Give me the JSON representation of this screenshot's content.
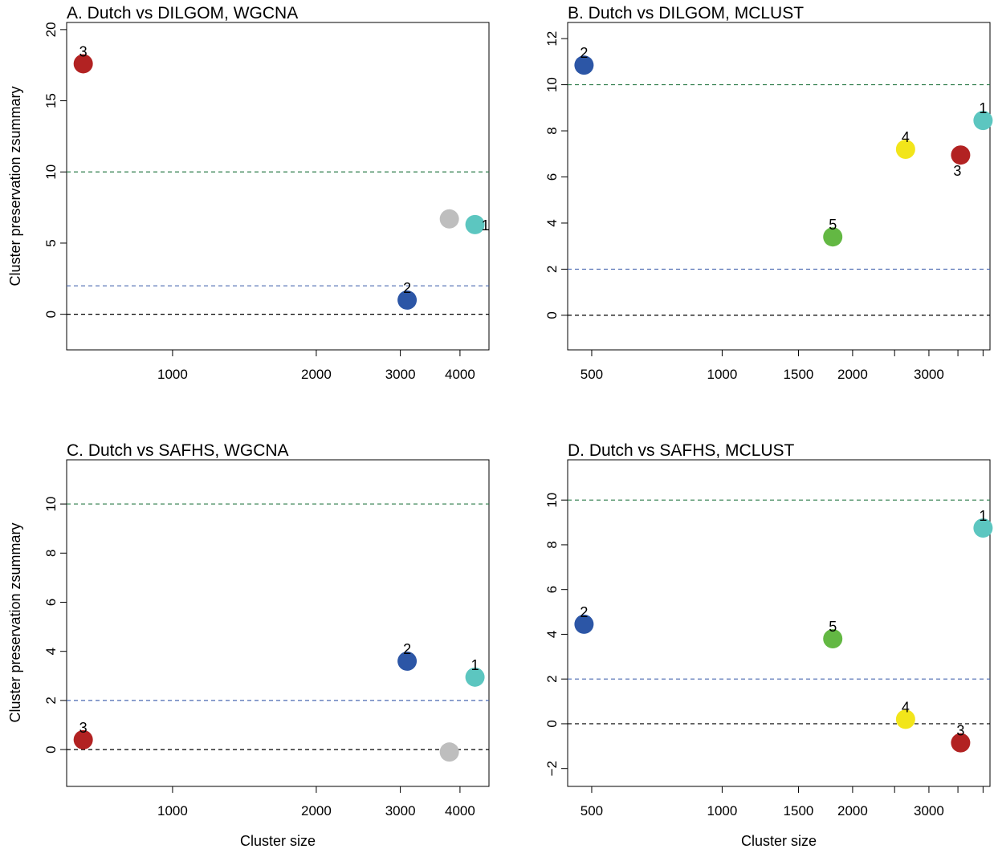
{
  "figure": {
    "xlabel": "Cluster size",
    "ylabel": "Cluster preservation zsummary"
  },
  "colors": {
    "threshold10": "#2f7d4b",
    "threshold2": "#4a68b0",
    "zero": "#000000",
    "point_outline": "none"
  },
  "chart_data": [
    {
      "id": "A",
      "type": "scatter",
      "title": "A. Dutch vs DILGOM, WGCNA",
      "xscale": "log",
      "xlim": [
        600,
        4600
      ],
      "ylim": [
        -2.5,
        20.5
      ],
      "xticks": [
        1000,
        2000,
        3000,
        4000
      ],
      "yticks": [
        0,
        5,
        10,
        15,
        20
      ],
      "hlines": [
        {
          "y": 10,
          "color": "#2f7d4b"
        },
        {
          "y": 2,
          "color": "#4a68b0"
        },
        {
          "y": 0,
          "color": "#000000"
        }
      ],
      "points": [
        {
          "label": "3",
          "x": 650,
          "y": 17.6,
          "color": "#b22222",
          "label_pos": "above"
        },
        {
          "label": "",
          "x": 3800,
          "y": 6.7,
          "color": "#bebebe",
          "label_pos": "none"
        },
        {
          "label": "1",
          "x": 4300,
          "y": 6.3,
          "color": "#5cc6c0",
          "label_pos": "right"
        },
        {
          "label": "2",
          "x": 3100,
          "y": 1.0,
          "color": "#2c56a6",
          "label_pos": "above"
        }
      ]
    },
    {
      "id": "B",
      "type": "scatter",
      "title": "B. Dutch vs DILGOM, MCLUST",
      "xscale": "log",
      "xlim": [
        440,
        4150
      ],
      "ylim": [
        -1.5,
        12.7
      ],
      "xticks": [
        500,
        1000,
        1500,
        2000,
        3000
      ],
      "xticks_unlabeled": [
        2500,
        3500,
        4000
      ],
      "yticks": [
        0,
        2,
        4,
        6,
        8,
        10,
        12
      ],
      "hlines": [
        {
          "y": 10,
          "color": "#2f7d4b"
        },
        {
          "y": 2,
          "color": "#4a68b0"
        },
        {
          "y": 0,
          "color": "#000000"
        }
      ],
      "points": [
        {
          "label": "2",
          "x": 480,
          "y": 10.85,
          "color": "#2c56a6",
          "label_pos": "above"
        },
        {
          "label": "1",
          "x": 4000,
          "y": 8.45,
          "color": "#5cc6c0",
          "label_pos": "above"
        },
        {
          "label": "4",
          "x": 2650,
          "y": 7.2,
          "color": "#f2e51a",
          "label_pos": "above"
        },
        {
          "label": "3",
          "x": 3550,
          "y": 6.95,
          "color": "#b22222",
          "label_pos": "below"
        },
        {
          "label": "5",
          "x": 1800,
          "y": 3.4,
          "color": "#63b843",
          "label_pos": "above"
        }
      ]
    },
    {
      "id": "C",
      "type": "scatter",
      "title": "C. Dutch vs SAFHS, WGCNA",
      "xscale": "log",
      "xlim": [
        600,
        4600
      ],
      "ylim": [
        -1.5,
        11.8
      ],
      "xticks": [
        1000,
        2000,
        3000,
        4000
      ],
      "yticks": [
        0,
        2,
        4,
        6,
        8,
        10
      ],
      "hlines": [
        {
          "y": 10,
          "color": "#2f7d4b"
        },
        {
          "y": 2,
          "color": "#4a68b0"
        },
        {
          "y": 0,
          "color": "#000000"
        }
      ],
      "points": [
        {
          "label": "2",
          "x": 3100,
          "y": 3.6,
          "color": "#2c56a6",
          "label_pos": "above"
        },
        {
          "label": "1",
          "x": 4300,
          "y": 2.95,
          "color": "#5cc6c0",
          "label_pos": "above"
        },
        {
          "label": "3",
          "x": 650,
          "y": 0.4,
          "color": "#b22222",
          "label_pos": "above"
        },
        {
          "label": "",
          "x": 3800,
          "y": -0.1,
          "color": "#bebebe",
          "label_pos": "none"
        }
      ]
    },
    {
      "id": "D",
      "type": "scatter",
      "title": "D. Dutch vs SAFHS, MCLUST",
      "xscale": "log",
      "xlim": [
        440,
        4150
      ],
      "ylim": [
        -2.8,
        11.8
      ],
      "xticks": [
        500,
        1000,
        1500,
        2000,
        3000
      ],
      "xticks_unlabeled": [
        2500,
        3500,
        4000
      ],
      "yticks": [
        -2,
        0,
        2,
        4,
        6,
        8,
        10
      ],
      "hlines": [
        {
          "y": 10,
          "color": "#2f7d4b"
        },
        {
          "y": 2,
          "color": "#4a68b0"
        },
        {
          "y": 0,
          "color": "#000000"
        }
      ],
      "points": [
        {
          "label": "1",
          "x": 4000,
          "y": 8.75,
          "color": "#5cc6c0",
          "label_pos": "above"
        },
        {
          "label": "2",
          "x": 480,
          "y": 4.45,
          "color": "#2c56a6",
          "label_pos": "above"
        },
        {
          "label": "5",
          "x": 1800,
          "y": 3.8,
          "color": "#63b843",
          "label_pos": "above"
        },
        {
          "label": "4",
          "x": 2650,
          "y": 0.2,
          "color": "#f2e51a",
          "label_pos": "above"
        },
        {
          "label": "3",
          "x": 3550,
          "y": -0.85,
          "color": "#b22222",
          "label_pos": "above"
        }
      ]
    }
  ]
}
